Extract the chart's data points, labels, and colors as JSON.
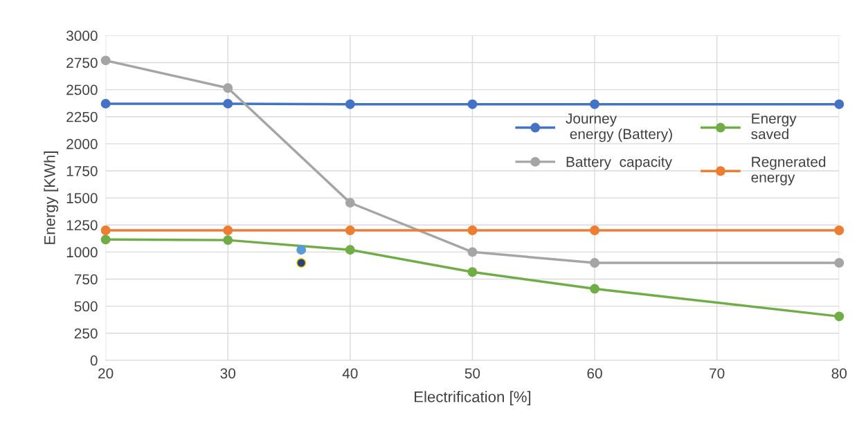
{
  "chart_data": {
    "type": "line",
    "xlabel": "Electrification [%]",
    "ylabel": "Energy [KWh]",
    "x": [
      20,
      30,
      40,
      50,
      60,
      80
    ],
    "series": [
      {
        "name": "Journey\n energy (Battery)",
        "color": "#4472c4",
        "values": [
          2370,
          2370,
          2365,
          2365,
          2365,
          2365
        ]
      },
      {
        "name": "Battery  capacity",
        "color": "#a5a5a5",
        "values": [
          2770,
          2515,
          1455,
          1000,
          900,
          900
        ]
      },
      {
        "name": "Energy\nsaved",
        "color": "#70ad47",
        "values": [
          1115,
          1110,
          1020,
          815,
          660,
          405
        ]
      },
      {
        "name": "Regnerated\nenergy",
        "color": "#ed7d31",
        "values": [
          1200,
          1200,
          1200,
          1200,
          1200,
          1200
        ]
      },
      {
        "type": "scatter",
        "color": "#5b9bd5",
        "x": [
          36
        ],
        "values": [
          1020
        ]
      },
      {
        "type": "scatter",
        "color": "#264478",
        "x": [
          36
        ],
        "values": [
          900
        ]
      }
    ],
    "xlim": [
      20,
      80
    ],
    "xticks": [
      20,
      30,
      40,
      50,
      60,
      70,
      80
    ],
    "ylim": [
      0,
      3000
    ],
    "yticks": [
      0,
      250,
      500,
      750,
      1000,
      1250,
      1500,
      1750,
      2000,
      2250,
      2500,
      2750,
      3000
    ],
    "grid": true,
    "legend": "right",
    "marker": "circle",
    "line_style": "solid"
  }
}
